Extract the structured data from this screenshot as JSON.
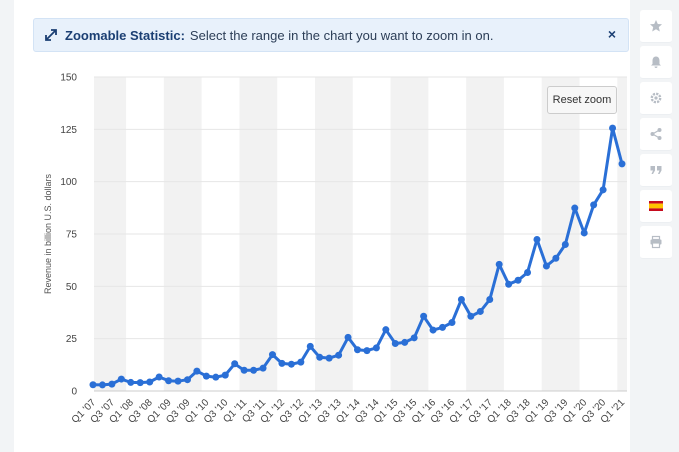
{
  "banner": {
    "title": "Zoomable Statistic:",
    "message": "Select the range in the chart you want to zoom in on.",
    "close_label": "×"
  },
  "reset_zoom_label": "Reset zoom",
  "sidebar": {
    "icons": [
      "star-icon",
      "bell-icon",
      "gear-icon",
      "share-icon",
      "quote-icon",
      "flag-icon",
      "print-icon"
    ]
  },
  "colors": {
    "line": "#2a6fd6",
    "band": "#f2f2f2",
    "grid": "#e6e6e6",
    "banner_bg": "#e8f1fb"
  },
  "chart_data": {
    "type": "line",
    "title": "",
    "ylabel": "Revenue in billion U.S. dollars",
    "xlabel": "",
    "ylim": [
      0,
      150
    ],
    "yticks": [
      0,
      25,
      50,
      75,
      100,
      125,
      150
    ],
    "grid": true,
    "legend": "none",
    "x_tick_labels": [
      "Q1 '07",
      "Q3 '07",
      "Q1 '08",
      "Q3 '08",
      "Q1 '09",
      "Q3 '09",
      "Q1 '10",
      "Q3 '10",
      "Q1 '11",
      "Q3 '11",
      "Q1 '12",
      "Q3 '12",
      "Q1 '13",
      "Q3 '13",
      "Q1 '14",
      "Q3 '14",
      "Q1 '15",
      "Q3 '15",
      "Q1 '16",
      "Q3 '16",
      "Q1 '17",
      "Q3 '17",
      "Q1 '18",
      "Q3 '18",
      "Q1 '19",
      "Q3 '19",
      "Q1 '20",
      "Q3 '20",
      "Q1 '21"
    ],
    "series": [
      {
        "values": [
          3.0,
          2.9,
          3.3,
          5.7,
          4.1,
          4.0,
          4.3,
          6.7,
          4.9,
          4.7,
          5.4,
          9.5,
          7.1,
          6.6,
          7.6,
          13.0,
          9.9,
          9.9,
          10.9,
          17.4,
          13.2,
          12.8,
          13.8,
          21.3,
          16.1,
          15.7,
          17.1,
          25.6,
          19.7,
          19.3,
          20.6,
          29.3,
          22.7,
          23.2,
          25.4,
          35.7,
          29.1,
          30.4,
          32.7,
          43.7,
          35.7,
          38.0,
          43.7,
          60.5,
          51.0,
          52.9,
          56.6,
          72.4,
          59.7,
          63.4,
          70.0,
          87.4,
          75.5,
          88.9,
          96.1,
          125.6,
          108.5
        ]
      }
    ]
  }
}
